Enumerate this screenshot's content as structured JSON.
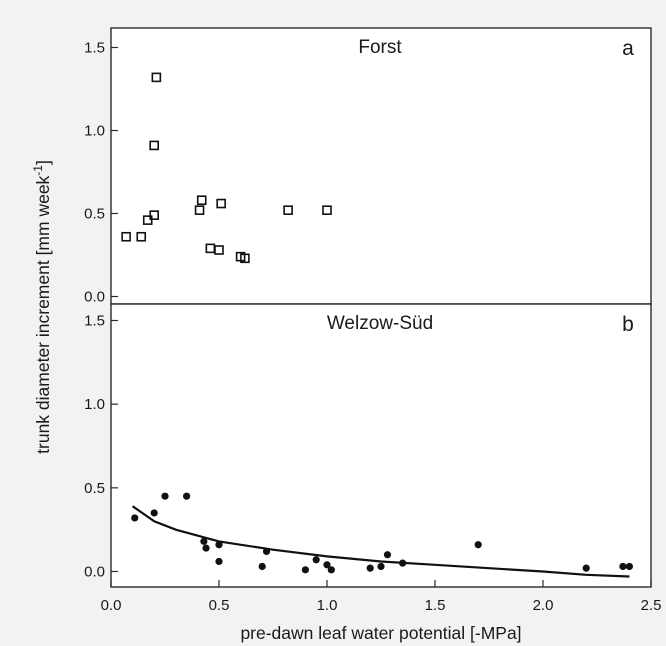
{
  "chart_data": [
    {
      "type": "scatter",
      "panel_letter": "a",
      "title": "Forst",
      "marker": "open-square",
      "xlim": [
        0,
        2.5
      ],
      "ylim": [
        -0.05,
        1.6
      ],
      "y_ticks": [
        "0.0",
        "0.5",
        "1.0",
        "1.5"
      ],
      "points": [
        {
          "x": 0.07,
          "y": 0.36
        },
        {
          "x": 0.14,
          "y": 0.36
        },
        {
          "x": 0.17,
          "y": 0.46
        },
        {
          "x": 0.2,
          "y": 0.49
        },
        {
          "x": 0.2,
          "y": 0.91
        },
        {
          "x": 0.21,
          "y": 1.32
        },
        {
          "x": 0.41,
          "y": 0.52
        },
        {
          "x": 0.42,
          "y": 0.58
        },
        {
          "x": 0.46,
          "y": 0.29
        },
        {
          "x": 0.5,
          "y": 0.28
        },
        {
          "x": 0.51,
          "y": 0.56
        },
        {
          "x": 0.6,
          "y": 0.24
        },
        {
          "x": 0.62,
          "y": 0.23
        },
        {
          "x": 0.82,
          "y": 0.52
        },
        {
          "x": 1.0,
          "y": 0.52
        }
      ]
    },
    {
      "type": "scatter",
      "panel_letter": "b",
      "title": "Welzow-Süd",
      "marker": "filled-circle",
      "xlim": [
        0,
        2.5
      ],
      "ylim": [
        -0.05,
        1.6
      ],
      "x_ticks": [
        "0.0",
        "0.5",
        "1.0",
        "1.5",
        "2.0",
        "2.5"
      ],
      "y_ticks": [
        "0.0",
        "0.5",
        "1.0",
        "1.5"
      ],
      "xlabel": "pre-dawn leaf water potential [-MPa]",
      "ylabel": "trunk diameter increment [mm week",
      "ylabel_superscript": "-1",
      "ylabel_suffix": "]",
      "points": [
        {
          "x": 0.11,
          "y": 0.32
        },
        {
          "x": 0.2,
          "y": 0.35
        },
        {
          "x": 0.25,
          "y": 0.45
        },
        {
          "x": 0.35,
          "y": 0.45
        },
        {
          "x": 0.43,
          "y": 0.18
        },
        {
          "x": 0.44,
          "y": 0.14
        },
        {
          "x": 0.5,
          "y": 0.16
        },
        {
          "x": 0.5,
          "y": 0.06
        },
        {
          "x": 0.7,
          "y": 0.03
        },
        {
          "x": 0.72,
          "y": 0.12
        },
        {
          "x": 0.9,
          "y": 0.01
        },
        {
          "x": 0.95,
          "y": 0.07
        },
        {
          "x": 1.0,
          "y": 0.04
        },
        {
          "x": 1.02,
          "y": 0.01
        },
        {
          "x": 1.2,
          "y": 0.02
        },
        {
          "x": 1.25,
          "y": 0.03
        },
        {
          "x": 1.28,
          "y": 0.1
        },
        {
          "x": 1.35,
          "y": 0.05
        },
        {
          "x": 1.7,
          "y": 0.16
        },
        {
          "x": 2.2,
          "y": 0.02
        },
        {
          "x": 2.37,
          "y": 0.03
        },
        {
          "x": 2.4,
          "y": 0.03
        }
      ],
      "fit_curve": [
        {
          "x": 0.1,
          "y": 0.39
        },
        {
          "x": 0.2,
          "y": 0.3
        },
        {
          "x": 0.3,
          "y": 0.25
        },
        {
          "x": 0.5,
          "y": 0.18
        },
        {
          "x": 0.75,
          "y": 0.13
        },
        {
          "x": 1.0,
          "y": 0.09
        },
        {
          "x": 1.25,
          "y": 0.06
        },
        {
          "x": 1.5,
          "y": 0.04
        },
        {
          "x": 1.75,
          "y": 0.02
        },
        {
          "x": 2.0,
          "y": 0.0
        },
        {
          "x": 2.2,
          "y": -0.02
        },
        {
          "x": 2.4,
          "y": -0.03
        }
      ]
    }
  ]
}
